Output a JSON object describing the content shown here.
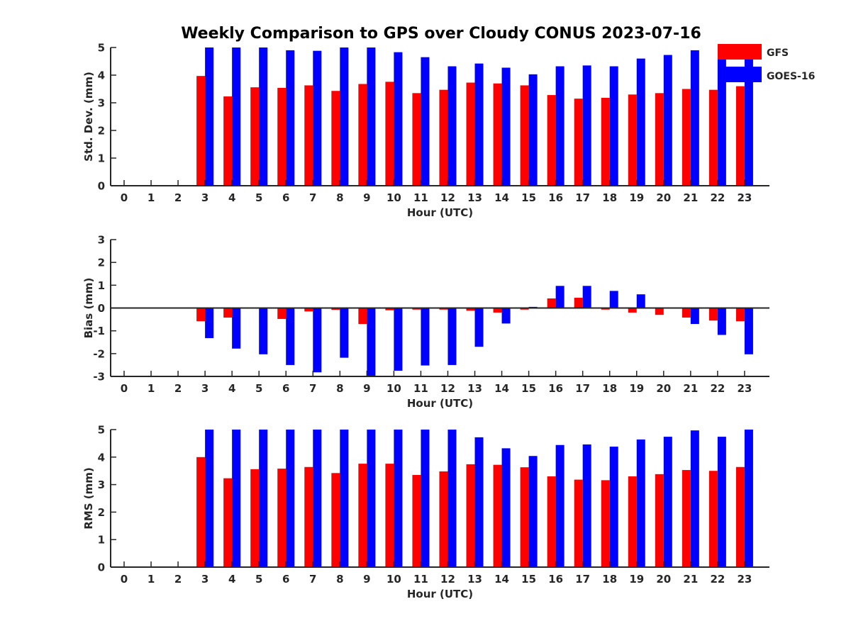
{
  "title": "Weekly Comparison to GPS over Cloudy CONUS 2023-07-16",
  "colors": {
    "GFS": "#ff0000",
    "GOES-16": "#0000ff"
  },
  "legend": {
    "placement": "top-right",
    "entries": [
      "GFS",
      "GOES-16"
    ]
  },
  "chart_data": [
    {
      "type": "bar",
      "categories": [
        "0",
        "1",
        "2",
        "3",
        "4",
        "5",
        "6",
        "7",
        "8",
        "9",
        "10",
        "11",
        "12",
        "13",
        "14",
        "15",
        "16",
        "17",
        "18",
        "19",
        "20",
        "21",
        "22",
        "23"
      ],
      "xlabel": "Hour (UTC)",
      "ylabel": "Std. Dev. (mm)",
      "ylim": [
        0,
        5
      ],
      "yticks": [
        0,
        1,
        2,
        3,
        4,
        5
      ],
      "series": [
        {
          "name": "GFS",
          "values": [
            null,
            null,
            null,
            3.97,
            3.23,
            3.56,
            3.54,
            3.63,
            3.43,
            3.68,
            3.76,
            3.35,
            3.47,
            3.73,
            3.7,
            3.63,
            3.28,
            3.15,
            3.18,
            3.3,
            3.35,
            3.5,
            3.47,
            3.6
          ]
        },
        {
          "name": "GOES-16",
          "values": [
            null,
            null,
            null,
            5.05,
            5.13,
            5.08,
            4.9,
            4.88,
            5.05,
            5.05,
            4.83,
            4.65,
            4.32,
            4.42,
            4.27,
            4.03,
            4.32,
            4.35,
            4.32,
            4.6,
            4.73,
            4.9,
            4.6,
            4.65
          ]
        }
      ]
    },
    {
      "type": "bar",
      "categories": [
        "0",
        "1",
        "2",
        "3",
        "4",
        "5",
        "6",
        "7",
        "8",
        "9",
        "10",
        "11",
        "12",
        "13",
        "14",
        "15",
        "16",
        "17",
        "18",
        "19",
        "20",
        "21",
        "22",
        "23"
      ],
      "xlabel": "Hour (UTC)",
      "ylabel": "Bias (mm)",
      "ylim": [
        -3,
        3
      ],
      "yticks": [
        -3,
        -2,
        -1,
        0,
        1,
        2,
        3
      ],
      "series": [
        {
          "name": "GFS",
          "values": [
            null,
            null,
            null,
            -0.58,
            -0.42,
            0.0,
            -0.48,
            -0.15,
            -0.08,
            -0.7,
            -0.1,
            -0.07,
            -0.07,
            -0.12,
            -0.2,
            -0.07,
            0.42,
            0.45,
            -0.07,
            -0.2,
            -0.3,
            -0.42,
            -0.55,
            -0.58
          ]
        },
        {
          "name": "GOES-16",
          "values": [
            null,
            null,
            null,
            -1.32,
            -1.78,
            -2.03,
            -2.5,
            -2.82,
            -2.18,
            -3.05,
            -2.75,
            -2.52,
            -2.5,
            -1.7,
            -0.68,
            0.05,
            0.97,
            0.97,
            0.75,
            0.6,
            0.03,
            -0.7,
            -1.18,
            -2.03
          ]
        }
      ]
    },
    {
      "type": "bar",
      "categories": [
        "0",
        "1",
        "2",
        "3",
        "4",
        "5",
        "6",
        "7",
        "8",
        "9",
        "10",
        "11",
        "12",
        "13",
        "14",
        "15",
        "16",
        "17",
        "18",
        "19",
        "20",
        "21",
        "22",
        "23"
      ],
      "xlabel": "Hour (UTC)",
      "ylabel": "RMS (mm)",
      "ylim": [
        0,
        5
      ],
      "yticks": [
        0,
        1,
        2,
        3,
        4,
        5
      ],
      "series": [
        {
          "name": "GFS",
          "values": [
            null,
            null,
            null,
            4.0,
            3.23,
            3.56,
            3.58,
            3.64,
            3.42,
            3.76,
            3.76,
            3.35,
            3.48,
            3.74,
            3.72,
            3.63,
            3.3,
            3.18,
            3.16,
            3.3,
            3.38,
            3.53,
            3.5,
            3.64
          ]
        },
        {
          "name": "GOES-16",
          "values": [
            null,
            null,
            null,
            5.1,
            5.1,
            5.1,
            5.1,
            5.1,
            5.1,
            5.1,
            5.1,
            5.1,
            5.1,
            4.72,
            4.32,
            4.04,
            4.44,
            4.46,
            4.38,
            4.64,
            4.74,
            4.97,
            4.74,
            5.1
          ]
        }
      ]
    }
  ]
}
